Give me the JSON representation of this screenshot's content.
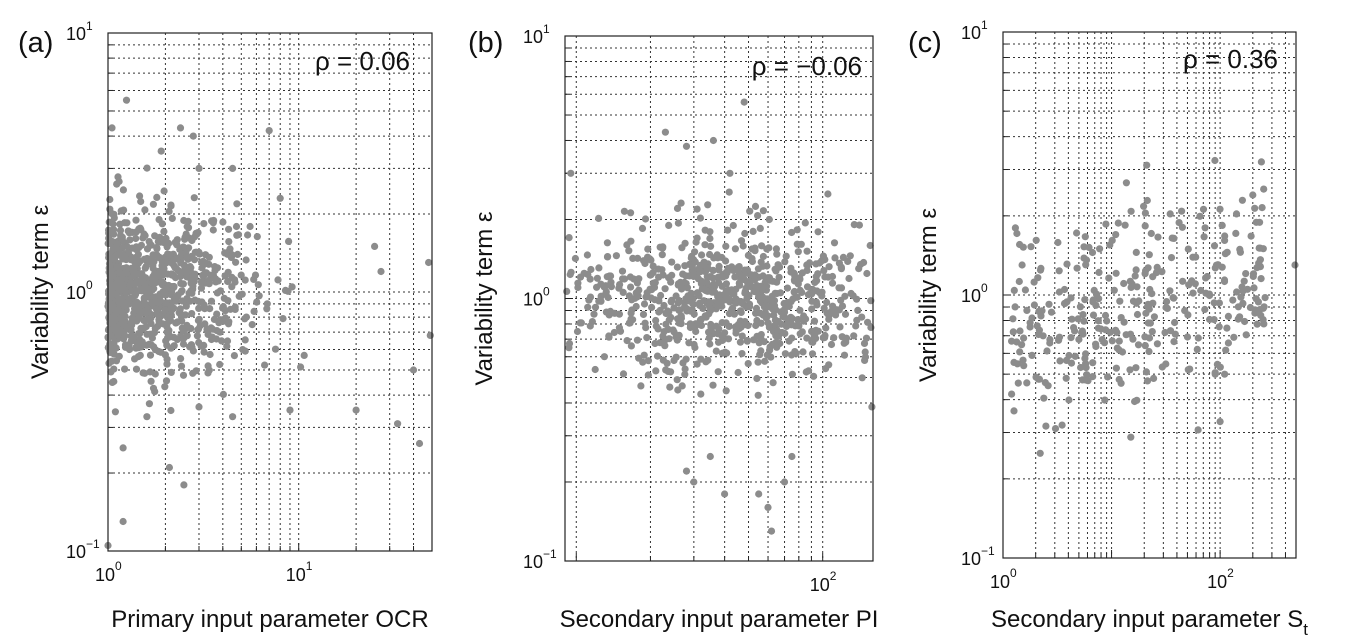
{
  "chart_data": [
    {
      "type": "scatter",
      "panel": "(a)",
      "xlabel": "Primary input parameter OCR",
      "ylabel": "Variability term ε",
      "annotation": "ρ = 0.06",
      "x_scale": "log",
      "y_scale": "log",
      "xlim": [
        1,
        50
      ],
      "ylim": [
        0.1,
        10
      ],
      "x_ticks": [
        {
          "base": "10",
          "exp": "0",
          "value": 1
        },
        {
          "base": "10",
          "exp": "1",
          "value": 10
        }
      ],
      "y_ticks": [
        {
          "base": "10",
          "exp": "−1",
          "value": 0.1
        },
        {
          "base": "10",
          "exp": "0",
          "value": 1
        },
        {
          "base": "10",
          "exp": "1",
          "value": 10
        }
      ],
      "grid": true,
      "marker_color": "#8c8c8c",
      "n_points": 900,
      "cluster": {
        "x_center": 1.6,
        "x_spread": 0.55,
        "y_center": 1.0,
        "y_spread": 0.55,
        "correlation": 0.06
      },
      "highlighted_points": [
        [
          1.25,
          5.5
        ],
        [
          1.05,
          4.3
        ],
        [
          2.4,
          4.3
        ],
        [
          7.0,
          4.2
        ],
        [
          1.9,
          3.5
        ],
        [
          2.8,
          4.0
        ],
        [
          3.0,
          3.0
        ],
        [
          4.5,
          3.0
        ],
        [
          8.0,
          2.3
        ],
        [
          25,
          1.5
        ],
        [
          27,
          1.2
        ],
        [
          48,
          1.3
        ],
        [
          49,
          0.68
        ],
        [
          40,
          0.5
        ],
        [
          33,
          0.31
        ],
        [
          43,
          0.26
        ],
        [
          1.2,
          0.25
        ],
        [
          1.2,
          0.13
        ],
        [
          1.0,
          0.105
        ],
        [
          2.5,
          0.18
        ],
        [
          2.1,
          0.21
        ],
        [
          1.6,
          0.33
        ],
        [
          3.0,
          0.36
        ],
        [
          4.5,
          0.33
        ],
        [
          9.0,
          0.35
        ],
        [
          20,
          0.35
        ]
      ]
    },
    {
      "type": "scatter",
      "panel": "(b)",
      "xlabel": "Secondary input parameter PI",
      "ylabel": "Variability term ε",
      "annotation": "ρ = −0.06",
      "x_scale": "log",
      "y_scale": "log",
      "xlim": [
        9,
        160
      ],
      "ylim": [
        0.1,
        10
      ],
      "x_ticks": [
        {
          "base": "10",
          "exp": "2",
          "value": 100
        }
      ],
      "y_ticks": [
        {
          "base": "10",
          "exp": "−1",
          "value": 0.1
        },
        {
          "base": "10",
          "exp": "0",
          "value": 1
        },
        {
          "base": "10",
          "exp": "1",
          "value": 10
        }
      ],
      "grid": true,
      "marker_color": "#8c8c8c",
      "n_points": 800,
      "cluster": {
        "x_center": 42,
        "x_spread": 0.65,
        "y_center": 1.0,
        "y_spread": 0.5,
        "correlation": -0.06
      },
      "highlighted_points": [
        [
          9.5,
          3.0
        ],
        [
          48,
          5.6
        ],
        [
          23,
          4.3
        ],
        [
          28,
          3.8
        ],
        [
          36,
          4.0
        ],
        [
          42,
          3.0
        ],
        [
          105,
          2.5
        ],
        [
          140,
          1.3
        ],
        [
          106,
          0.86
        ],
        [
          13,
          0.6
        ],
        [
          30,
          0.2
        ],
        [
          35,
          0.25
        ],
        [
          40,
          0.18
        ],
        [
          55,
          0.18
        ],
        [
          60,
          0.16
        ],
        [
          62,
          0.13
        ],
        [
          70,
          0.2
        ],
        [
          75,
          0.25
        ],
        [
          28,
          0.22
        ]
      ]
    },
    {
      "type": "scatter",
      "panel": "(c)",
      "xlabel": "Secondary input parameter S",
      "xlabel_subscript": "t",
      "ylabel": "Variability term ε",
      "annotation": "ρ = 0.36",
      "x_scale": "log",
      "y_scale": "log",
      "xlim": [
        1,
        500
      ],
      "ylim": [
        0.1,
        10
      ],
      "x_ticks": [
        {
          "base": "10",
          "exp": "0",
          "value": 1
        },
        {
          "base": "10",
          "exp": "2",
          "value": 100
        }
      ],
      "y_ticks": [
        {
          "base": "10",
          "exp": "−1",
          "value": 0.1
        },
        {
          "base": "10",
          "exp": "0",
          "value": 1
        },
        {
          "base": "10",
          "exp": "1",
          "value": 10
        }
      ],
      "grid": true,
      "marker_color": "#8c8c8c",
      "n_points": 330,
      "cluster": {
        "x_center": 18,
        "x_spread": 1.3,
        "y_center": 1.0,
        "y_spread": 0.42,
        "correlation": 0.36
      },
      "highlighted_points": [
        [
          1.2,
          0.42
        ],
        [
          2.2,
          0.25
        ],
        [
          3.5,
          0.32
        ],
        [
          200,
          2.4
        ],
        [
          250,
          1.5
        ],
        [
          490,
          1.3
        ],
        [
          100,
          0.33
        ],
        [
          90,
          0.5
        ],
        [
          110,
          0.5
        ],
        [
          1.3,
          1.8
        ],
        [
          1.5,
          1.3
        ]
      ]
    }
  ]
}
